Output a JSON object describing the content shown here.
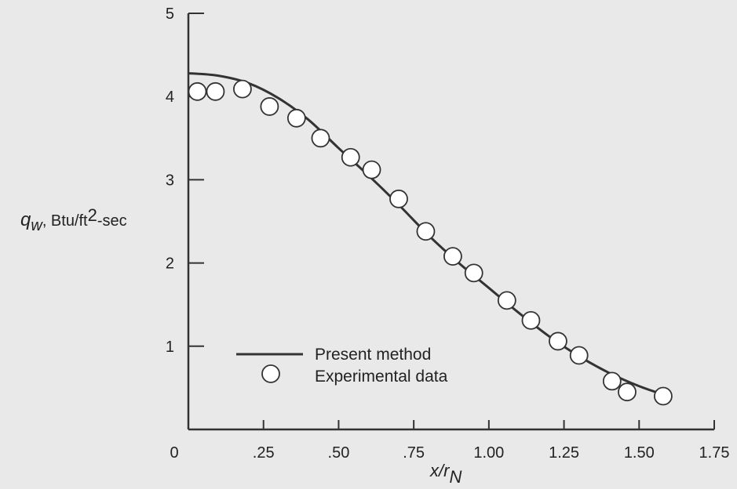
{
  "chart_data": {
    "type": "scatter",
    "x_ticks": [
      {
        "value": 0,
        "label": "0"
      },
      {
        "value": 0.25,
        "label": ".25"
      },
      {
        "value": 0.5,
        "label": ".50"
      },
      {
        "value": 0.75,
        "label": ".75"
      },
      {
        "value": 1.0,
        "label": "1.00"
      },
      {
        "value": 1.25,
        "label": "1.25"
      },
      {
        "value": 1.5,
        "label": "1.50"
      },
      {
        "value": 1.75,
        "label": "1.75"
      }
    ],
    "y_ticks": [
      {
        "value": 1,
        "label": "1"
      },
      {
        "value": 2,
        "label": "2"
      },
      {
        "value": 3,
        "label": "3"
      },
      {
        "value": 4,
        "label": "4"
      },
      {
        "value": 5,
        "label": "5"
      }
    ],
    "xlim": [
      0,
      1.75
    ],
    "ylim": [
      0,
      5
    ],
    "xlabel": {
      "main": "x/r",
      "sub": "N"
    },
    "ylabel": {
      "main": "q",
      "sub": "w",
      "rest": ", Btu/ft",
      "sup": "2",
      "tail": "-sec"
    },
    "grid": false,
    "legend": {
      "position": "lower-left",
      "entries": [
        "Present method",
        "Experimental data"
      ]
    },
    "series": [
      {
        "name": "Present method",
        "kind": "line",
        "x": [
          0.0,
          0.1,
          0.2,
          0.3,
          0.4,
          0.5,
          0.6,
          0.7,
          0.8,
          0.9,
          1.0,
          1.1,
          1.2,
          1.3,
          1.4,
          1.5,
          1.58
        ],
        "y": [
          4.28,
          4.25,
          4.16,
          3.98,
          3.72,
          3.38,
          3.05,
          2.7,
          2.33,
          2.0,
          1.7,
          1.4,
          1.12,
          0.88,
          0.68,
          0.52,
          0.42
        ]
      },
      {
        "name": "Experimental data",
        "kind": "marker",
        "x": [
          0.03,
          0.09,
          0.18,
          0.27,
          0.36,
          0.44,
          0.54,
          0.61,
          0.7,
          0.79,
          0.88,
          0.95,
          1.06,
          1.14,
          1.23,
          1.3,
          1.41,
          1.46,
          1.58
        ],
        "y": [
          4.06,
          4.06,
          4.09,
          3.88,
          3.74,
          3.5,
          3.27,
          3.12,
          2.77,
          2.38,
          2.08,
          1.88,
          1.55,
          1.31,
          1.06,
          0.89,
          0.58,
          0.45,
          0.4
        ]
      }
    ],
    "colors": {
      "line": "#333333",
      "marker_fill": "#ffffff",
      "marker_stroke": "#333333",
      "axis": "#333333",
      "background": "#e9e9e9"
    }
  }
}
